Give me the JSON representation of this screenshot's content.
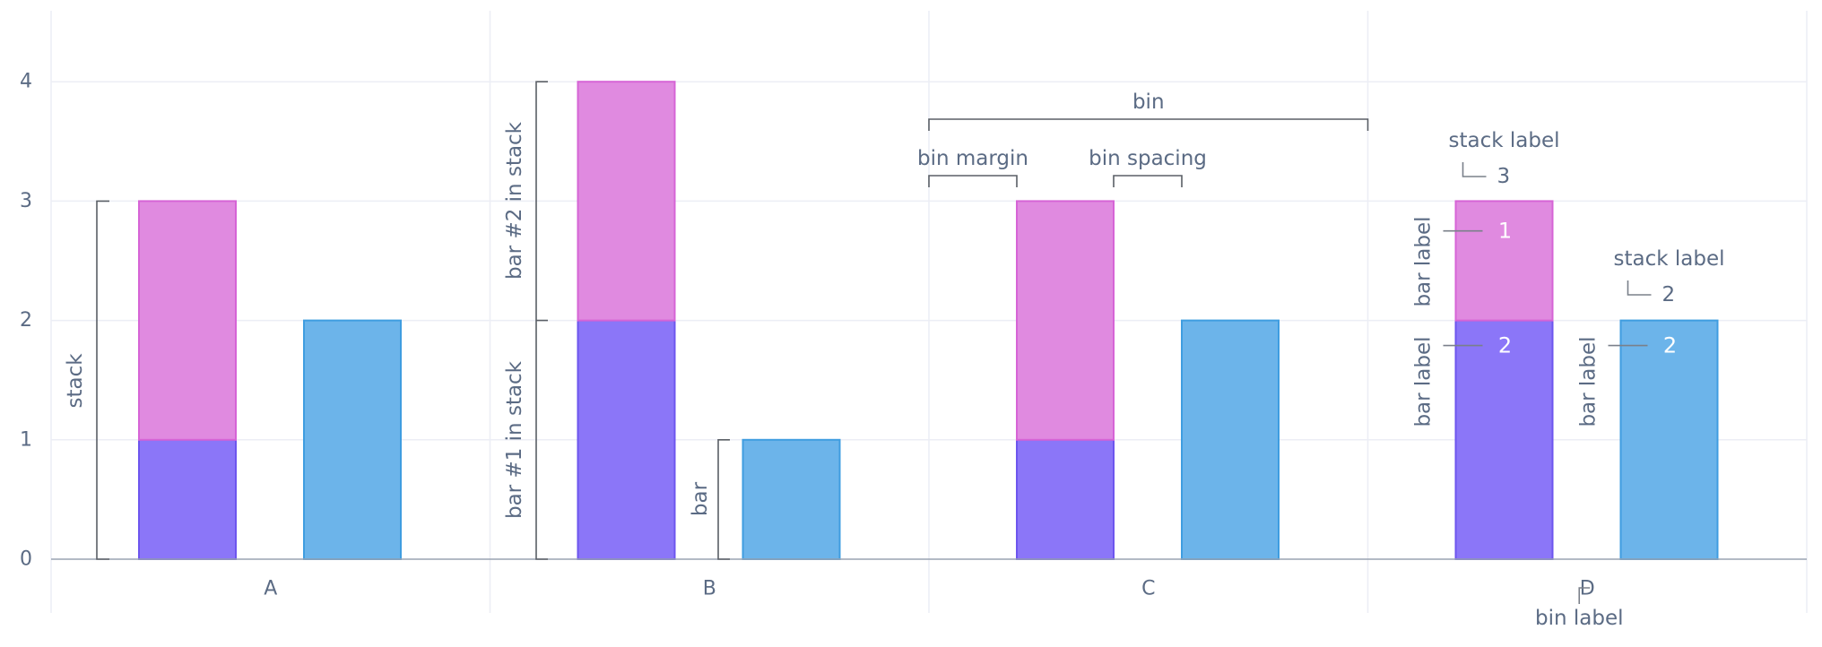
{
  "chart_data": {
    "type": "bar",
    "stacked": true,
    "categories": [
      "A",
      "B",
      "C",
      "D"
    ],
    "ylim": [
      0,
      4.4
    ],
    "y_ticks": [
      "0",
      "1",
      "2",
      "3",
      "4"
    ],
    "grid": true,
    "colors": {
      "series1": "#8b76f8",
      "series2": "#e08ae0",
      "bar": "#6cb4ea"
    },
    "bins": [
      {
        "category": "A",
        "stacks": [
          {
            "segments": [
              1,
              2
            ]
          },
          {
            "segments": [
              2
            ]
          }
        ]
      },
      {
        "category": "B",
        "stacks": [
          {
            "segments": [
              2,
              2
            ]
          },
          {
            "segments": [
              1
            ]
          }
        ]
      },
      {
        "category": "C",
        "stacks": [
          {
            "segments": [
              1,
              2
            ]
          },
          {
            "segments": [
              2
            ]
          }
        ]
      },
      {
        "category": "D",
        "stacks": [
          {
            "segments": [
              2,
              1
            ]
          },
          {
            "segments": [
              2
            ]
          }
        ]
      }
    ],
    "annotations": {
      "stack": "stack",
      "bar_1_in_stack": "bar #1 in stack",
      "bar_2_in_stack": "bar #2 in stack",
      "bar": "bar",
      "bin": "bin",
      "bin_margin": "bin margin",
      "bin_spacing": "bin spacing",
      "stack_label": "stack label",
      "bar_label": "bar label",
      "bin_label": "bin label"
    },
    "labels_d": {
      "stack1_total": "3",
      "stack2_total": "2",
      "stack1_bar2": "1",
      "stack1_bar1": "2",
      "stack2_bar1": "2"
    }
  }
}
